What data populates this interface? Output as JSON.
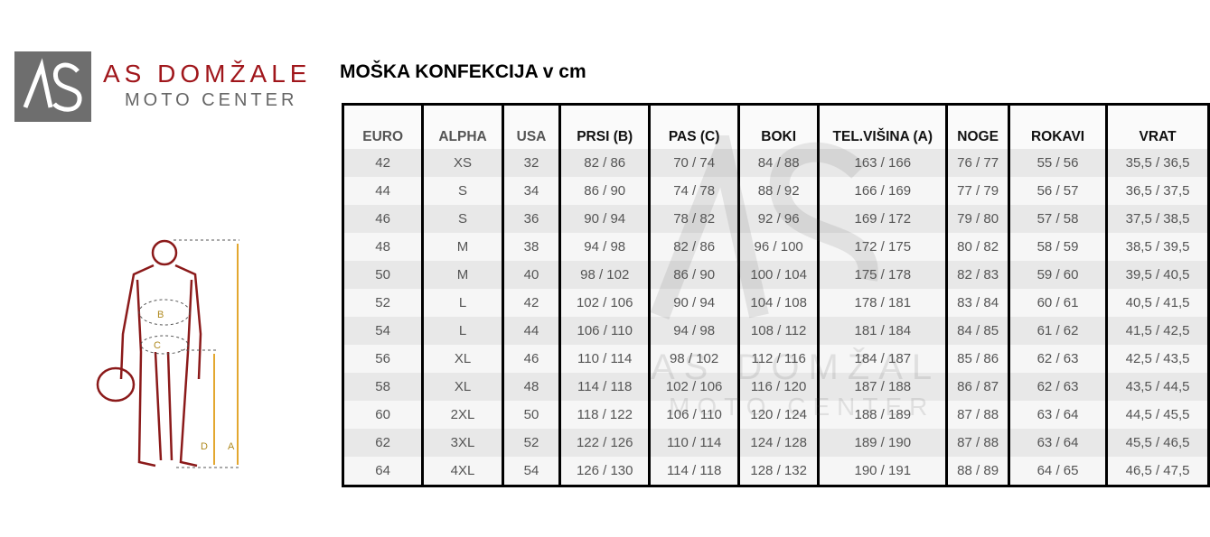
{
  "logo": {
    "name": "AS DOMŽALE",
    "sub": "MOTO CENTER",
    "mark": "AS",
    "colors": {
      "box": "#6e6e6e",
      "name": "#a0161b"
    }
  },
  "title": "MOŠKA KONFEKCIJA v cm",
  "figure": {
    "labels": [
      "B",
      "C",
      "D",
      "A"
    ]
  },
  "table": {
    "headers": [
      "EURO",
      "ALPHA",
      "USA",
      "PRSI (B)",
      "PAS (C)",
      "BOKI",
      "TEL.VIŠINA (A)",
      "NOGE",
      "ROKAVI",
      "VRAT"
    ],
    "rows": [
      [
        "42",
        "XS",
        "32",
        "82 / 86",
        "70 / 74",
        "84 / 88",
        "163 / 166",
        "76 / 77",
        "55 / 56",
        "35,5 / 36,5"
      ],
      [
        "44",
        "S",
        "34",
        "86 / 90",
        "74 / 78",
        "88 / 92",
        "166 / 169",
        "77 / 79",
        "56 / 57",
        "36,5 / 37,5"
      ],
      [
        "46",
        "S",
        "36",
        "90 / 94",
        "78 / 82",
        "92 / 96",
        "169 / 172",
        "79 / 80",
        "57 / 58",
        "37,5 / 38,5"
      ],
      [
        "48",
        "M",
        "38",
        "94 / 98",
        "82 / 86",
        "96 / 100",
        "172 / 175",
        "80 / 82",
        "58 / 59",
        "38,5 / 39,5"
      ],
      [
        "50",
        "M",
        "40",
        "98 / 102",
        "86 / 90",
        "100 / 104",
        "175 / 178",
        "82 / 83",
        "59 / 60",
        "39,5 / 40,5"
      ],
      [
        "52",
        "L",
        "42",
        "102 / 106",
        "90 / 94",
        "104 / 108",
        "178 / 181",
        "83 / 84",
        "60 / 61",
        "40,5 / 41,5"
      ],
      [
        "54",
        "L",
        "44",
        "106 / 110",
        "94 / 98",
        "108 / 112",
        "181 / 184",
        "84 / 85",
        "61 / 62",
        "41,5 / 42,5"
      ],
      [
        "56",
        "XL",
        "46",
        "110 / 114",
        "98 / 102",
        "112 / 116",
        "184 / 187",
        "85 / 86",
        "62 / 63",
        "42,5 / 43,5"
      ],
      [
        "58",
        "XL",
        "48",
        "114 / 118",
        "102 / 106",
        "116 / 120",
        "187 / 188",
        "86 / 87",
        "62 / 63",
        "43,5 / 44,5"
      ],
      [
        "60",
        "2XL",
        "50",
        "118 / 122",
        "106 / 110",
        "120 / 124",
        "188 / 189",
        "87 / 88",
        "63 / 64",
        "44,5 / 45,5"
      ],
      [
        "62",
        "3XL",
        "52",
        "122 / 126",
        "110 / 114",
        "124 / 128",
        "189 / 190",
        "87 / 88",
        "63 / 64",
        "45,5 / 46,5"
      ],
      [
        "64",
        "4XL",
        "54",
        "126 / 130",
        "114 / 118",
        "128 / 132",
        "190 / 191",
        "88 / 89",
        "64 / 65",
        "46,5 / 47,5"
      ]
    ]
  }
}
